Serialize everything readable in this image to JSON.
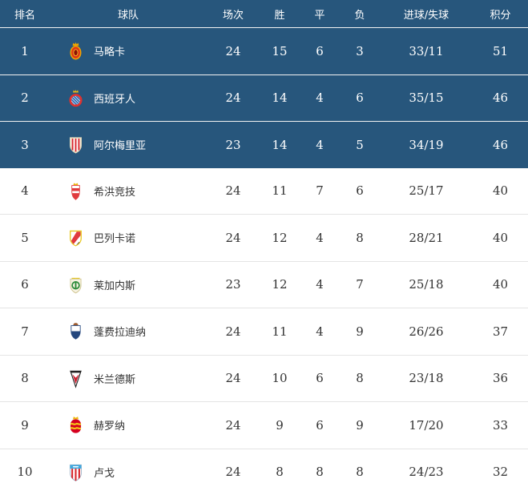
{
  "table": {
    "header": {
      "rank": "排名",
      "team": "球队",
      "played": "场次",
      "win": "胜",
      "draw": "平",
      "loss": "负",
      "goals": "进球/失球",
      "points": "积分"
    },
    "rows": [
      {
        "rank": "1",
        "name": "马略卡",
        "logo": "mallorca-crest",
        "played": "24",
        "win": "15",
        "draw": "6",
        "loss": "3",
        "goals": "33/11",
        "points": "51",
        "highlighted": true
      },
      {
        "rank": "2",
        "name": "西班牙人",
        "logo": "espanyol-crest",
        "played": "24",
        "win": "14",
        "draw": "4",
        "loss": "6",
        "goals": "35/15",
        "points": "46",
        "highlighted": true
      },
      {
        "rank": "3",
        "name": "阿尔梅里亚",
        "logo": "almeria-crest",
        "played": "23",
        "win": "14",
        "draw": "4",
        "loss": "5",
        "goals": "34/19",
        "points": "46",
        "highlighted": true
      },
      {
        "rank": "4",
        "name": "希洪竞技",
        "logo": "sporting-gijon-crest",
        "played": "24",
        "win": "11",
        "draw": "7",
        "loss": "6",
        "goals": "25/17",
        "points": "40",
        "highlighted": false
      },
      {
        "rank": "5",
        "name": "巴列卡诺",
        "logo": "rayo-vallecano-crest",
        "played": "24",
        "win": "12",
        "draw": "4",
        "loss": "8",
        "goals": "28/21",
        "points": "40",
        "highlighted": false
      },
      {
        "rank": "6",
        "name": "莱加内斯",
        "logo": "leganes-crest",
        "played": "23",
        "win": "12",
        "draw": "4",
        "loss": "7",
        "goals": "25/18",
        "points": "40",
        "highlighted": false
      },
      {
        "rank": "7",
        "name": "蓬费拉迪纳",
        "logo": "ponferradina-crest",
        "played": "24",
        "win": "11",
        "draw": "4",
        "loss": "9",
        "goals": "26/26",
        "points": "37",
        "highlighted": false
      },
      {
        "rank": "8",
        "name": "米兰德斯",
        "logo": "mirandes-crest",
        "played": "24",
        "win": "10",
        "draw": "6",
        "loss": "8",
        "goals": "23/18",
        "points": "36",
        "highlighted": false
      },
      {
        "rank": "9",
        "name": "赫罗纳",
        "logo": "girona-crest",
        "played": "24",
        "win": "9",
        "draw": "6",
        "loss": "9",
        "goals": "17/20",
        "points": "33",
        "highlighted": false
      },
      {
        "rank": "10",
        "name": "卢戈",
        "logo": "lugo-crest",
        "played": "24",
        "win": "8",
        "draw": "8",
        "loss": "8",
        "goals": "24/23",
        "points": "32",
        "highlighted": false
      }
    ]
  },
  "colors": {
    "header_bg": "#27567c",
    "highlight_row_bg": "#27567c",
    "row_bg": "#ffffff",
    "header_text": "#ffffff",
    "row_text": "#333333",
    "separator_dark": "#f2f2f2",
    "separator_light": "#e4e4e4"
  },
  "chart_data": {
    "type": "table",
    "title": "",
    "columns": [
      "排名",
      "球队",
      "场次",
      "胜",
      "平",
      "负",
      "进球/失球",
      "积分"
    ],
    "rows": [
      [
        "1",
        "马略卡",
        "24",
        "15",
        "6",
        "3",
        "33/11",
        "51"
      ],
      [
        "2",
        "西班牙人",
        "24",
        "14",
        "4",
        "6",
        "35/15",
        "46"
      ],
      [
        "3",
        "阿尔梅里亚",
        "23",
        "14",
        "4",
        "5",
        "34/19",
        "46"
      ],
      [
        "4",
        "希洪竞技",
        "24",
        "11",
        "7",
        "6",
        "25/17",
        "40"
      ],
      [
        "5",
        "巴列卡诺",
        "24",
        "12",
        "4",
        "8",
        "28/21",
        "40"
      ],
      [
        "6",
        "莱加内斯",
        "23",
        "12",
        "4",
        "7",
        "25/18",
        "40"
      ],
      [
        "7",
        "蓬费拉迪纳",
        "24",
        "11",
        "4",
        "9",
        "26/26",
        "37"
      ],
      [
        "8",
        "米兰德斯",
        "24",
        "10",
        "6",
        "8",
        "23/18",
        "36"
      ],
      [
        "9",
        "赫罗纳",
        "24",
        "9",
        "6",
        "9",
        "17/20",
        "33"
      ],
      [
        "10",
        "卢戈",
        "24",
        "8",
        "8",
        "8",
        "24/23",
        "32"
      ]
    ],
    "layout_hints": {
      "highlighted_rows": [
        1,
        2,
        3
      ],
      "highlight_color": "#27567c"
    }
  }
}
